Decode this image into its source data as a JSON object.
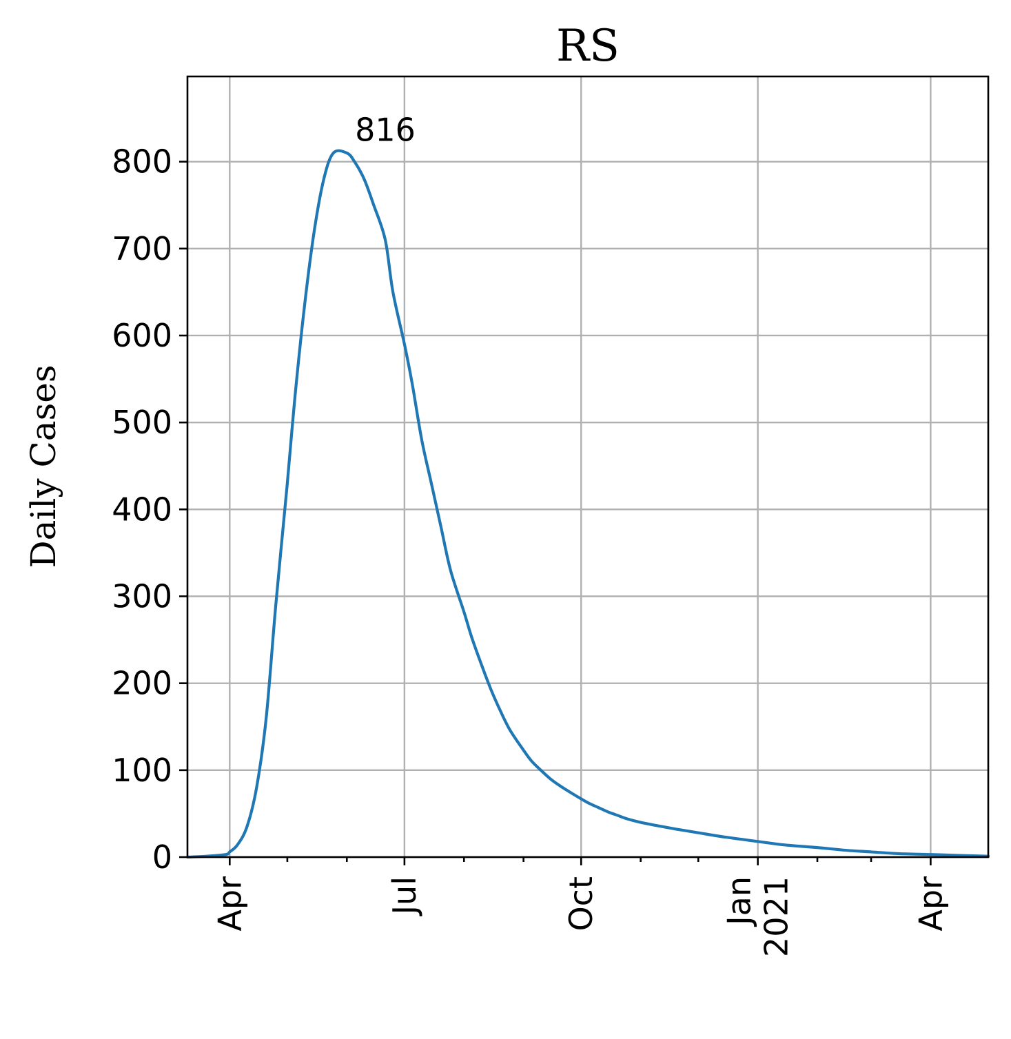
{
  "chart_data": {
    "type": "line",
    "title": "RS",
    "xlabel": "",
    "ylabel": "Daily Cases",
    "xlim": [
      "2020-03-10",
      "2021-05-01"
    ],
    "ylim": [
      0,
      898
    ],
    "grid": true,
    "line_color": "#1f77b4",
    "annotations": [
      {
        "text": "816",
        "x": "2020-06-21",
        "y": 816
      }
    ],
    "y_ticks": [
      {
        "value": 0,
        "label": "0"
      },
      {
        "value": 100,
        "label": "100"
      },
      {
        "value": 200,
        "label": "200"
      },
      {
        "value": 300,
        "label": "300"
      },
      {
        "value": 400,
        "label": "400"
      },
      {
        "value": 500,
        "label": "500"
      },
      {
        "value": 600,
        "label": "600"
      },
      {
        "value": 700,
        "label": "700"
      },
      {
        "value": 800,
        "label": "800"
      }
    ],
    "x_major_ticks": [
      {
        "date": "2020-04-01",
        "lines": [
          "Apr"
        ]
      },
      {
        "date": "2020-07-01",
        "lines": [
          "Jul"
        ]
      },
      {
        "date": "2020-10-01",
        "lines": [
          "Oct"
        ]
      },
      {
        "date": "2021-01-01",
        "lines": [
          "Jan",
          "2021"
        ]
      },
      {
        "date": "2021-04-01",
        "lines": [
          "Apr"
        ]
      }
    ],
    "x_minor_ticks": [
      "2020-05-01",
      "2020-06-01",
      "2020-08-01",
      "2020-09-01",
      "2020-11-01",
      "2020-12-01",
      "2021-02-01",
      "2021-03-01"
    ],
    "series": [
      {
        "x": [
          "2020-03-10",
          "2020-03-20",
          "2020-03-30",
          "2020-04-01",
          "2020-04-05",
          "2020-04-10",
          "2020-04-15",
          "2020-04-20",
          "2020-04-25",
          "2020-05-01",
          "2020-05-05",
          "2020-05-10",
          "2020-05-15",
          "2020-05-20",
          "2020-05-25",
          "2020-06-01",
          "2020-06-05",
          "2020-06-10",
          "2020-06-15",
          "2020-06-21",
          "2020-06-25",
          "2020-07-01",
          "2020-07-05",
          "2020-07-10",
          "2020-07-15",
          "2020-07-20",
          "2020-07-25",
          "2020-08-01",
          "2020-08-05",
          "2020-08-10",
          "2020-08-15",
          "2020-08-20",
          "2020-08-25",
          "2020-09-01",
          "2020-09-05",
          "2020-09-10",
          "2020-09-15",
          "2020-09-20",
          "2020-09-25",
          "2020-10-01",
          "2020-10-05",
          "2020-10-10",
          "2020-10-15",
          "2020-10-20",
          "2020-10-25",
          "2020-11-01",
          "2020-11-10",
          "2020-11-20",
          "2020-12-01",
          "2020-12-15",
          "2021-01-01",
          "2021-01-15",
          "2021-02-01",
          "2021-02-15",
          "2021-03-01",
          "2021-03-15",
          "2021-04-01",
          "2021-04-15",
          "2021-05-01"
        ],
        "y": [
          0,
          1,
          3,
          6,
          14,
          35,
          80,
          160,
          290,
          430,
          530,
          635,
          720,
          780,
          810,
          810,
          800,
          780,
          750,
          710,
          650,
          590,
          545,
          480,
          430,
          380,
          330,
          282,
          253,
          222,
          193,
          168,
          146,
          123,
          111,
          100,
          90,
          82,
          75,
          67,
          62,
          57,
          52,
          48,
          44,
          40,
          36,
          32,
          28,
          23,
          18,
          14,
          11,
          8,
          6,
          4,
          3,
          2,
          1
        ]
      }
    ]
  }
}
